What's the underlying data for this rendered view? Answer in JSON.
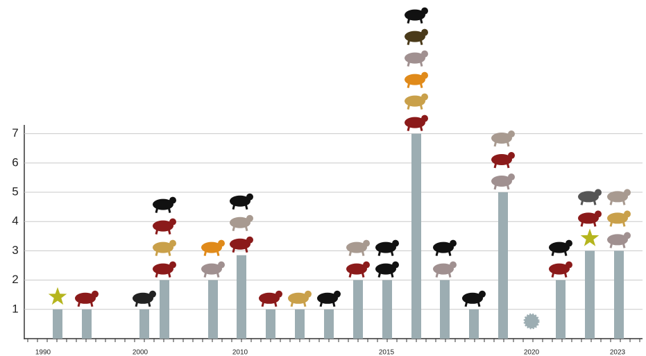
{
  "chart_data": {
    "type": "bar",
    "categories": [
      "1990",
      null,
      "2000",
      null,
      null,
      "2010",
      null,
      null,
      null,
      null,
      "2015",
      null,
      null,
      null,
      null,
      "2020",
      null,
      null,
      "2023"
    ],
    "values": [
      1,
      1,
      1,
      2,
      2,
      2.85,
      1,
      1,
      1,
      2,
      2,
      7,
      2,
      1,
      5,
      0,
      2,
      3,
      3
    ],
    "color": "#9cadb2",
    "ylim": [
      0,
      7.3
    ],
    "yticks": [
      1,
      2,
      3,
      4,
      5,
      6,
      7
    ],
    "grid": true
  }
}
